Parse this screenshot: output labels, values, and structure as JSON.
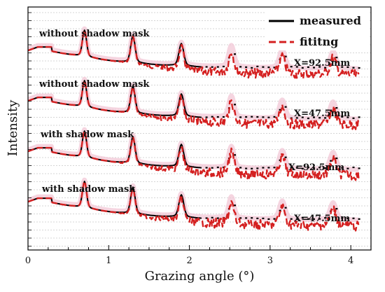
{
  "chart_data": {
    "type": "line",
    "xlabel": "Grazing angle (°)",
    "ylabel": "Intensity",
    "xlim": [
      0,
      4.25
    ],
    "xticks": [
      "0",
      "1",
      "2",
      "3",
      "4"
    ],
    "grid": true,
    "legend_position": "top-right",
    "legend": [
      {
        "label": "measured",
        "color": "#000000",
        "style": "solid"
      },
      {
        "label": "fititng",
        "color": "#d42020",
        "style": "dashed"
      }
    ],
    "colors": {
      "measured": "#000000",
      "fitting": "#d42020",
      "shading": "#f2c7d6"
    },
    "peaks_deg": [
      0.7,
      1.3,
      1.9,
      2.52,
      3.15,
      3.78
    ],
    "panels": [
      {
        "condition": "without shadow mask",
        "position_label": "X=92.5mm"
      },
      {
        "condition": "without shadow mask",
        "position_label": "X=47.5mm"
      },
      {
        "condition": "with shadow mask",
        "position_label": "X=92.5mm"
      },
      {
        "condition": "with shadow mask",
        "position_label": "X=47.5mm"
      }
    ]
  }
}
